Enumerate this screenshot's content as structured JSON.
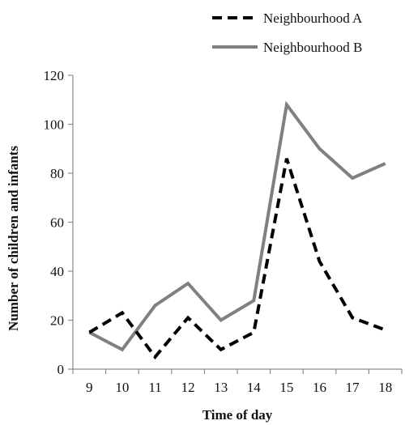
{
  "chart_data": {
    "type": "line",
    "title": "",
    "xlabel": "Time of day",
    "ylabel": "Number  of children and  infants",
    "x": [
      9,
      10,
      11,
      12,
      13,
      14,
      15,
      16,
      17,
      18
    ],
    "ylim": [
      0,
      120
    ],
    "yticks": [
      0,
      20,
      40,
      60,
      80,
      100,
      120
    ],
    "grid": false,
    "legend_position": "top-right",
    "series": [
      {
        "name": "Neighbourhood A",
        "values": [
          15,
          23,
          5,
          21,
          8,
          15,
          86,
          44,
          21,
          16
        ],
        "color": "#000000",
        "style": "dashed"
      },
      {
        "name": "Neighbourhood B",
        "values": [
          15,
          8,
          26,
          35,
          20,
          28,
          108,
          90,
          78,
          84
        ],
        "color": "#808080",
        "style": "solid"
      }
    ]
  }
}
